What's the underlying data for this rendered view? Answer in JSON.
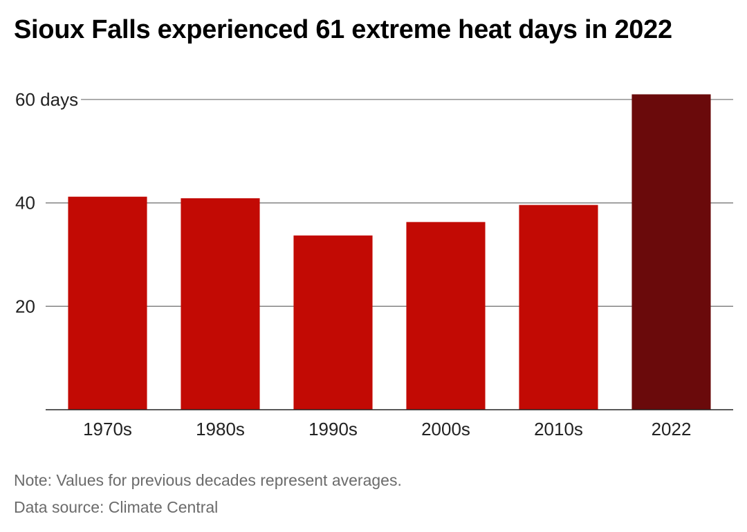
{
  "chart_data": {
    "type": "bar",
    "title": "Sioux Falls experienced 61 extreme heat days in 2022",
    "categories": [
      "1970s",
      "1980s",
      "1990s",
      "2000s",
      "2010s",
      "2022"
    ],
    "values": [
      41.2,
      40.9,
      33.7,
      36.3,
      39.6,
      61
    ],
    "bar_colors": [
      "#c20a04",
      "#c20a04",
      "#c20a04",
      "#c20a04",
      "#c20a04",
      "#6a0a0b"
    ],
    "y_ticks": [
      {
        "value": 20,
        "label": "20"
      },
      {
        "value": 40,
        "label": "40"
      },
      {
        "value": 60,
        "label": "60 days"
      }
    ],
    "ylim": [
      0,
      60
    ],
    "grid": true
  },
  "footer": {
    "note": "Note: Values for previous decades represent averages.",
    "source": "Data source: Climate Central"
  }
}
